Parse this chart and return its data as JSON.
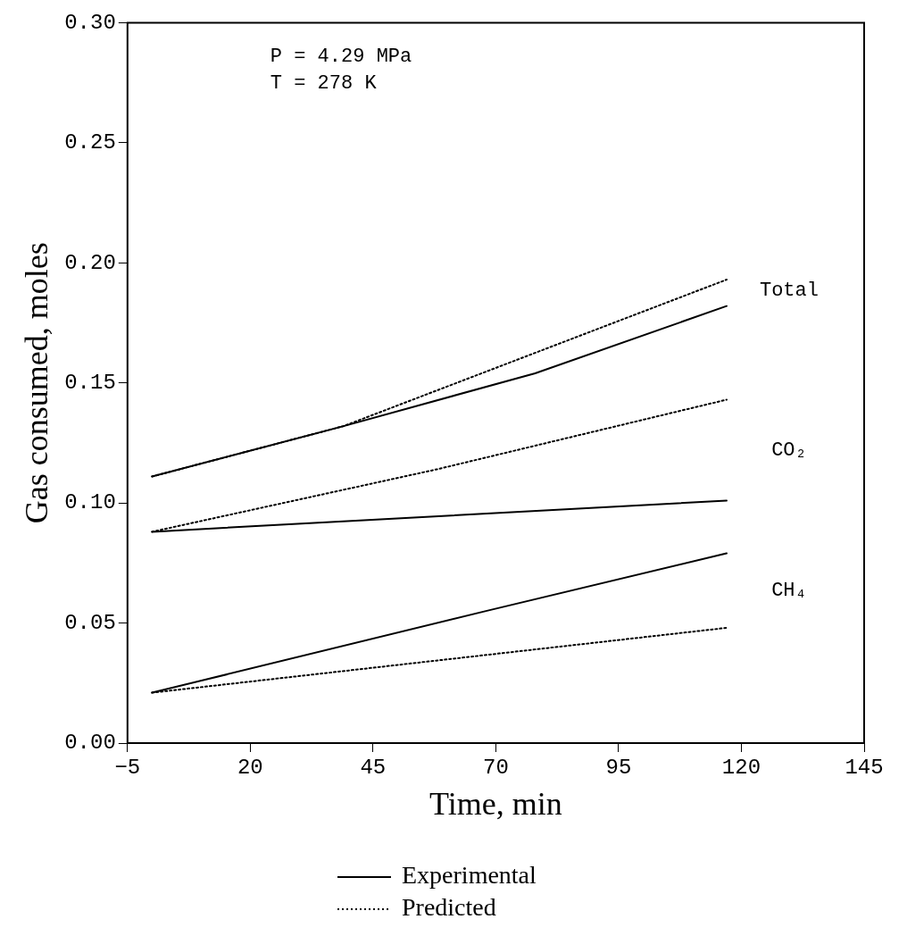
{
  "chart_data": {
    "type": "line",
    "xlabel": "Time, min",
    "ylabel": "Gas consumed, moles",
    "xlim": [
      -5,
      145
    ],
    "xticks": [
      -5,
      20,
      45,
      70,
      95,
      120,
      145
    ],
    "ylim": [
      0,
      0.3
    ],
    "yticks": [
      {
        "value": 0,
        "label": "0.00"
      },
      {
        "value": 0.05,
        "label": "0.05"
      },
      {
        "value": 0.1,
        "label": "0.10"
      },
      {
        "value": 0.15,
        "label": "0.15"
      },
      {
        "value": 0.2,
        "label": "0.20"
      },
      {
        "value": 0.25,
        "label": "0.25"
      },
      {
        "value": 0.3,
        "label": "0.30"
      }
    ],
    "grid": false,
    "legend": "bottom",
    "marker": "none",
    "series": [
      {
        "name": "Experimental",
        "color": "#000000",
        "line_style": "solid",
        "x": [
          0,
          39,
          78,
          117
        ],
        "values": [
          0.111,
          0.132,
          0.154,
          0.182
        ]
      },
      {
        "name": "Predicted",
        "color": "#000000",
        "line_style": "dotted",
        "x": [
          0,
          39,
          117
        ],
        "values": [
          0.111,
          0.132,
          0.193
        ]
      },
      {
        "color": "#000000",
        "line_style": "solid",
        "x": [
          0,
          117
        ],
        "values": [
          0.088,
          0.101
        ]
      },
      {
        "color": "#000000",
        "line_style": "dotted",
        "x": [
          0,
          58,
          117
        ],
        "values": [
          0.088,
          0.114,
          0.143
        ]
      },
      {
        "color": "#000000",
        "line_style": "solid",
        "x": [
          0,
          68,
          117
        ],
        "values": [
          0.021,
          0.055,
          0.079
        ]
      },
      {
        "color": "#000000",
        "line_style": "dotted",
        "x": [
          0,
          117
        ],
        "values": [
          0.021,
          0.048
        ]
      }
    ],
    "annotations": [
      "P = 4.29 MPa",
      "T = 278 K",
      "Total",
      "CO₂",
      "CH₄"
    ]
  }
}
